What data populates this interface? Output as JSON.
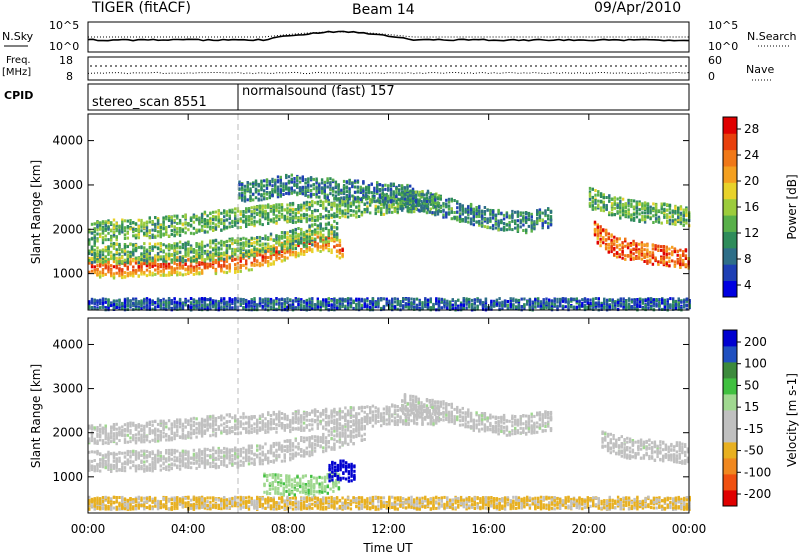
{
  "header": {
    "title": "TIGER (fitACF)",
    "beam": "Beam 14",
    "date": "09/Apr/2010"
  },
  "strips": {
    "nsky_label": "N.Sky",
    "nsky_ticks": [
      "10^5",
      "10^0"
    ],
    "nsearch_label": "N.Search",
    "nsearch_ticks": [
      "10^5",
      "10^0"
    ],
    "freq_label": "Freq.",
    "freq_unit": "[MHz]",
    "freq_ticks": [
      "18",
      "8"
    ],
    "nave_label": "Nave",
    "nave_ticks": [
      "60",
      "0"
    ],
    "cpid_label": "CPID",
    "cpid_segments": [
      "stereo_scan 8551",
      "normalsound (fast) 157"
    ]
  },
  "chart_data": [
    {
      "type": "heatmap",
      "name": "power-panel",
      "ylabel": "Slant Range [km]",
      "xlabel": "",
      "ylim": [
        180,
        4600
      ],
      "yticks": [
        1000,
        2000,
        3000,
        4000
      ],
      "xticks": [
        "00:00",
        "04:00",
        "08:00",
        "12:00",
        "16:00",
        "20:00",
        "00:00"
      ],
      "xlim_hours": [
        0,
        24
      ],
      "colorbar": {
        "label": "Power [dB]",
        "ticks": [
          "28",
          "24",
          "20",
          "16",
          "12",
          "8",
          "4"
        ],
        "range": [
          0,
          30
        ],
        "colors": [
          "#0000e0",
          "#1e3fb4",
          "#2e6e88",
          "#2e8c5a",
          "#58b04a",
          "#9ccc3c",
          "#e8d22a",
          "#f4a020",
          "#f07818",
          "#e8400c",
          "#e00000"
        ]
      },
      "bands": [
        {
          "name": "main-echo",
          "t": [
            0,
            1,
            2,
            3,
            4,
            5,
            6,
            7,
            8,
            9,
            9.6,
            10.2
          ],
          "r": [
            1150,
            1130,
            1160,
            1190,
            1200,
            1220,
            1260,
            1380,
            1560,
            1720,
            1720,
            1500
          ],
          "power": 27
        },
        {
          "name": "main-echo-fringe",
          "t": [
            0,
            1,
            2,
            3,
            4,
            5,
            6,
            7,
            8,
            9,
            10
          ],
          "r": [
            1480,
            1460,
            1450,
            1460,
            1500,
            1520,
            1580,
            1640,
            1760,
            1880,
            2000
          ],
          "power": 12
        },
        {
          "name": "upper-band",
          "t": [
            0,
            1.5,
            3,
            4.5,
            6,
            7,
            8,
            9,
            10,
            11,
            12,
            13,
            14
          ],
          "r": [
            1950,
            2000,
            2050,
            2150,
            2250,
            2330,
            2350,
            2420,
            2480,
            2520,
            2580,
            2620,
            2650
          ],
          "power": 12
        },
        {
          "name": "far-scatter",
          "t": [
            6,
            7,
            8,
            9,
            10,
            11,
            12,
            13
          ],
          "r": [
            2850,
            2900,
            3000,
            2950,
            2900,
            2850,
            2800,
            2750
          ],
          "power": 8
        },
        {
          "name": "midday-arc",
          "t": [
            12.5,
            13.5,
            14.5,
            15.5,
            16.5,
            17.5,
            18.5
          ],
          "r": [
            2650,
            2600,
            2450,
            2300,
            2200,
            2150,
            2280
          ],
          "power": 9
        },
        {
          "name": "evening-echo",
          "t": [
            20.2,
            21,
            22,
            23,
            24
          ],
          "r": [
            1950,
            1600,
            1480,
            1400,
            1300
          ],
          "power": 24
        },
        {
          "name": "evening-upper",
          "t": [
            20,
            21,
            22,
            23,
            24
          ],
          "r": [
            2700,
            2500,
            2400,
            2350,
            2300
          ],
          "power": 12
        },
        {
          "name": "ground-clutter",
          "t": [
            0,
            4,
            8,
            12,
            16,
            20,
            24
          ],
          "r": [
            300,
            300,
            300,
            300,
            300,
            300,
            300
          ],
          "power": 6
        }
      ]
    },
    {
      "type": "heatmap",
      "name": "velocity-panel",
      "ylabel": "Slant Range [km]",
      "xlabel": "Time UT",
      "ylim": [
        180,
        4600
      ],
      "yticks": [
        1000,
        2000,
        3000,
        4000
      ],
      "xticks": [
        "00:00",
        "04:00",
        "08:00",
        "12:00",
        "16:00",
        "20:00",
        "00:00"
      ],
      "xlim_hours": [
        0,
        24
      ],
      "colorbar": {
        "label": "Velocity [m s-1]",
        "ticks": [
          "200",
          "100",
          "50",
          "15",
          "-15",
          "-50",
          "-100",
          "-200"
        ],
        "range": [
          -200,
          200
        ],
        "colors": [
          "#e00000",
          "#f05010",
          "#f08820",
          "#e8b020",
          "#c0c0c0",
          "#c0c0c0",
          "#a0d890",
          "#40c040",
          "#3c8a3c",
          "#2050c0",
          "#0000d0"
        ]
      },
      "bands": [
        {
          "name": "ground-scatter-main",
          "t": [
            0,
            2,
            4,
            6,
            8,
            9.5,
            11
          ],
          "r": [
            1350,
            1350,
            1400,
            1450,
            1600,
            1800,
            2050
          ],
          "velocity": 0
        },
        {
          "name": "ground-scatter-wide",
          "t": [
            0,
            2,
            4,
            6,
            8,
            10,
            12,
            14
          ],
          "r": [
            1950,
            2000,
            2100,
            2200,
            2250,
            2330,
            2400,
            2400
          ],
          "velocity": 0
        },
        {
          "name": "westward-flow",
          "t": [
            7,
            8,
            9,
            10
          ],
          "r": [
            850,
            800,
            800,
            900
          ],
          "velocity": 40
        },
        {
          "name": "fast-flow",
          "t": [
            9.6,
            10.1,
            10.6
          ],
          "r": [
            1100,
            1150,
            1100
          ],
          "velocity": 200
        },
        {
          "name": "arc-ground",
          "t": [
            12.5,
            14,
            15.5,
            17,
            18.5
          ],
          "r": [
            2650,
            2500,
            2250,
            2150,
            2280
          ],
          "velocity": 0
        },
        {
          "name": "evening-ground",
          "t": [
            20.5,
            21.5,
            22.5,
            23.5,
            24
          ],
          "r": [
            1800,
            1650,
            1600,
            1550,
            1500
          ],
          "velocity": 0
        },
        {
          "name": "near-range",
          "t": [
            0,
            4,
            8,
            12,
            16,
            20,
            24
          ],
          "r": [
            400,
            400,
            400,
            400,
            400,
            400,
            400
          ],
          "velocity": -60
        }
      ]
    }
  ]
}
